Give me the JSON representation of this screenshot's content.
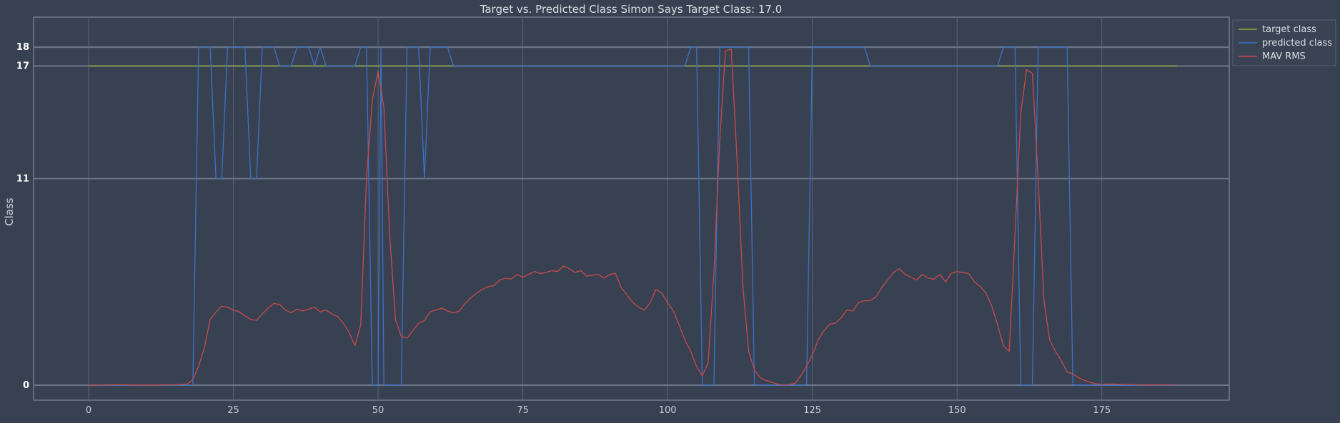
{
  "chart_data": {
    "type": "line",
    "title": "Target vs. Predicted Class Simon Says Target Class: 17.0",
    "xlabel": "",
    "ylabel": "Class",
    "xlim": [
      -9.5,
      197
    ],
    "ylim": [
      -0.8,
      19.6
    ],
    "xticks": [
      0,
      25,
      50,
      75,
      100,
      125,
      150,
      175
    ],
    "yticks": [
      0,
      11,
      17,
      18
    ],
    "grid": true,
    "legend_position": "top-right",
    "series": [
      {
        "name": "target class",
        "color": "#8fae3c",
        "points": [
          [
            0,
            17
          ],
          [
            188,
            17
          ]
        ]
      },
      {
        "name": "predicted class",
        "color": "#3b72c8",
        "points": [
          [
            0,
            0
          ],
          [
            18,
            0
          ],
          [
            19,
            18
          ],
          [
            21,
            18
          ],
          [
            22,
            11
          ],
          [
            23,
            11
          ],
          [
            24,
            18
          ],
          [
            27,
            18
          ],
          [
            28,
            11
          ],
          [
            29,
            11
          ],
          [
            30,
            18
          ],
          [
            32,
            18
          ],
          [
            33,
            17
          ],
          [
            35,
            17
          ],
          [
            36,
            18
          ],
          [
            38,
            18
          ],
          [
            39,
            17
          ],
          [
            40,
            18
          ],
          [
            41,
            17
          ],
          [
            46,
            17
          ],
          [
            47,
            18
          ],
          [
            48,
            18
          ],
          [
            49,
            0
          ],
          [
            50,
            0
          ],
          [
            50.5,
            18
          ],
          [
            51,
            0
          ],
          [
            54,
            0
          ],
          [
            55,
            18
          ],
          [
            57,
            18
          ],
          [
            58,
            11
          ],
          [
            59,
            18
          ],
          [
            62,
            18
          ],
          [
            63,
            17
          ],
          [
            103,
            17
          ],
          [
            104,
            18
          ],
          [
            105,
            18
          ],
          [
            106,
            0
          ],
          [
            108,
            0
          ],
          [
            109,
            18
          ],
          [
            114,
            18
          ],
          [
            115,
            0
          ],
          [
            124,
            0
          ],
          [
            125,
            18
          ],
          [
            134,
            18
          ],
          [
            135,
            17
          ],
          [
            157,
            17
          ],
          [
            158,
            18
          ],
          [
            160,
            18
          ],
          [
            161,
            0
          ],
          [
            163,
            0
          ],
          [
            164,
            18
          ],
          [
            169,
            18
          ],
          [
            170,
            0
          ],
          [
            188,
            0
          ]
        ]
      },
      {
        "name": "MAV RMS",
        "color": "#c84a4a",
        "points": [
          [
            0,
            0
          ],
          [
            5,
            0.02
          ],
          [
            10,
            0
          ],
          [
            15,
            0.02
          ],
          [
            17,
            0.05
          ],
          [
            18,
            0.3
          ],
          [
            19,
            1
          ],
          [
            20,
            2
          ],
          [
            21,
            3.5
          ],
          [
            22,
            3.9
          ],
          [
            23,
            4.2
          ],
          [
            24,
            4.15
          ],
          [
            25,
            4
          ],
          [
            26,
            3.9
          ],
          [
            27,
            3.7
          ],
          [
            28,
            3.5
          ],
          [
            29,
            3.45
          ],
          [
            30,
            3.8
          ],
          [
            31,
            4.1
          ],
          [
            32,
            4.35
          ],
          [
            33,
            4.3
          ],
          [
            34,
            4
          ],
          [
            35,
            3.85
          ],
          [
            36,
            4.05
          ],
          [
            37,
            3.95
          ],
          [
            38,
            4.05
          ],
          [
            39,
            4.15
          ],
          [
            40,
            3.9
          ],
          [
            41,
            4
          ],
          [
            42,
            3.8
          ],
          [
            43,
            3.65
          ],
          [
            44,
            3.3
          ],
          [
            45,
            2.8
          ],
          [
            46,
            2.1
          ],
          [
            47,
            3.2
          ],
          [
            48,
            11
          ],
          [
            49,
            15.2
          ],
          [
            50,
            16.7
          ],
          [
            51,
            14.8
          ],
          [
            52,
            8
          ],
          [
            53,
            3.5
          ],
          [
            54,
            2.6
          ],
          [
            55,
            2.5
          ],
          [
            56,
            2.9
          ],
          [
            57,
            3.3
          ],
          [
            58,
            3.45
          ],
          [
            59,
            3.9
          ],
          [
            60,
            4
          ],
          [
            61,
            4.1
          ],
          [
            62,
            3.95
          ],
          [
            63,
            3.85
          ],
          [
            64,
            3.95
          ],
          [
            65,
            4.35
          ],
          [
            66,
            4.65
          ],
          [
            67,
            4.9
          ],
          [
            68,
            5.1
          ],
          [
            69,
            5.25
          ],
          [
            70,
            5.3
          ],
          [
            71,
            5.6
          ],
          [
            72,
            5.7
          ],
          [
            73,
            5.65
          ],
          [
            74,
            5.9
          ],
          [
            75,
            5.75
          ],
          [
            76,
            5.9
          ],
          [
            77,
            6.05
          ],
          [
            78,
            5.95
          ],
          [
            79,
            6
          ],
          [
            80,
            6.1
          ],
          [
            81,
            6.05
          ],
          [
            82,
            6.35
          ],
          [
            83,
            6.2
          ],
          [
            84,
            6
          ],
          [
            85,
            6.1
          ],
          [
            86,
            5.8
          ],
          [
            87,
            5.85
          ],
          [
            88,
            5.9
          ],
          [
            89,
            5.7
          ],
          [
            90,
            5.9
          ],
          [
            91,
            5.95
          ],
          [
            92,
            5.2
          ],
          [
            93,
            4.8
          ],
          [
            94,
            4.4
          ],
          [
            95,
            4.15
          ],
          [
            96,
            4
          ],
          [
            97,
            4.4
          ],
          [
            98,
            5.1
          ],
          [
            99,
            4.9
          ],
          [
            100,
            4.4
          ],
          [
            101,
            3.95
          ],
          [
            102,
            3.2
          ],
          [
            103,
            2.4
          ],
          [
            104,
            1.8
          ],
          [
            105,
            1
          ],
          [
            106,
            0.5
          ],
          [
            107,
            1.2
          ],
          [
            108,
            6
          ],
          [
            109,
            13
          ],
          [
            110,
            17.8
          ],
          [
            111,
            17.9
          ],
          [
            112,
            12
          ],
          [
            113,
            5.3
          ],
          [
            114,
            1.8
          ],
          [
            115,
            0.8
          ],
          [
            116,
            0.4
          ],
          [
            117,
            0.25
          ],
          [
            118,
            0.15
          ],
          [
            119,
            0.05
          ],
          [
            120,
            0.02
          ],
          [
            121,
            0.03
          ],
          [
            122,
            0.1
          ],
          [
            123,
            0.5
          ],
          [
            124,
            1
          ],
          [
            125,
            1.6
          ],
          [
            126,
            2.4
          ],
          [
            127,
            2.9
          ],
          [
            128,
            3.25
          ],
          [
            129,
            3.3
          ],
          [
            130,
            3.6
          ],
          [
            131,
            4
          ],
          [
            132,
            3.95
          ],
          [
            133,
            4.4
          ],
          [
            134,
            4.5
          ],
          [
            135,
            4.5
          ],
          [
            136,
            4.7
          ],
          [
            137,
            5.2
          ],
          [
            138,
            5.6
          ],
          [
            139,
            6
          ],
          [
            140,
            6.2
          ],
          [
            141,
            5.9
          ],
          [
            142,
            5.75
          ],
          [
            143,
            5.6
          ],
          [
            144,
            5.9
          ],
          [
            145,
            5.7
          ],
          [
            146,
            5.65
          ],
          [
            147,
            5.9
          ],
          [
            148,
            5.5
          ],
          [
            149,
            5.95
          ],
          [
            150,
            6.05
          ],
          [
            151,
            6
          ],
          [
            152,
            5.95
          ],
          [
            153,
            5.5
          ],
          [
            154,
            5.25
          ],
          [
            155,
            4.9
          ],
          [
            156,
            4.2
          ],
          [
            157,
            3.2
          ],
          [
            158,
            2.1
          ],
          [
            159,
            1.8
          ],
          [
            160,
            8
          ],
          [
            161,
            14.5
          ],
          [
            162,
            16.8
          ],
          [
            163,
            16.6
          ],
          [
            164,
            11
          ],
          [
            165,
            4.5
          ],
          [
            166,
            2.4
          ],
          [
            167,
            1.8
          ],
          [
            168,
            1.3
          ],
          [
            169,
            0.7
          ],
          [
            170,
            0.6
          ],
          [
            171,
            0.4
          ],
          [
            172,
            0.25
          ],
          [
            173,
            0.15
          ],
          [
            174,
            0.07
          ],
          [
            175,
            0.05
          ],
          [
            176,
            0.06
          ],
          [
            177,
            0.06
          ],
          [
            178,
            0.05
          ],
          [
            179,
            0.04
          ],
          [
            180,
            0.03
          ],
          [
            181,
            0.02
          ],
          [
            182,
            0.02
          ],
          [
            183,
            0.01
          ],
          [
            188,
            0.02
          ]
        ]
      }
    ]
  }
}
